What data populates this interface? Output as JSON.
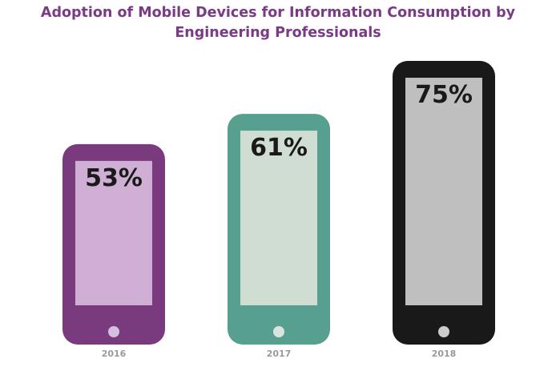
{
  "chart_data": {
    "type": "bar",
    "title": "Adoption of Mobile Devices for Information Consumption by Engineering Professionals",
    "title_lines": [
      "Adoption of Mobile Devices for Information Consumption by",
      "Engineering Professionals"
    ],
    "categories": [
      "2016",
      "2017",
      "2018"
    ],
    "values": [
      53,
      61,
      75
    ],
    "value_labels": [
      "53%",
      "61%",
      "75%"
    ],
    "series": [
      {
        "values": [
          53,
          61,
          75
        ]
      }
    ],
    "bar_style": "smartphone",
    "xlabel": "",
    "ylabel": "",
    "grid": false,
    "legend": "none",
    "colors": {
      "phone_bodies": [
        "#7a3a7e",
        "#579f8e",
        "#191919"
      ],
      "phone_screens": [
        "#cfb0d4",
        "#cfddd3",
        "#bfbfbf"
      ],
      "home_buttons": [
        "#d6bede",
        "#d8e5df",
        "#cccccc"
      ],
      "value_text": "#1a1a1a",
      "category_text": "#9a9a9a",
      "title": "#7a3a85"
    }
  }
}
